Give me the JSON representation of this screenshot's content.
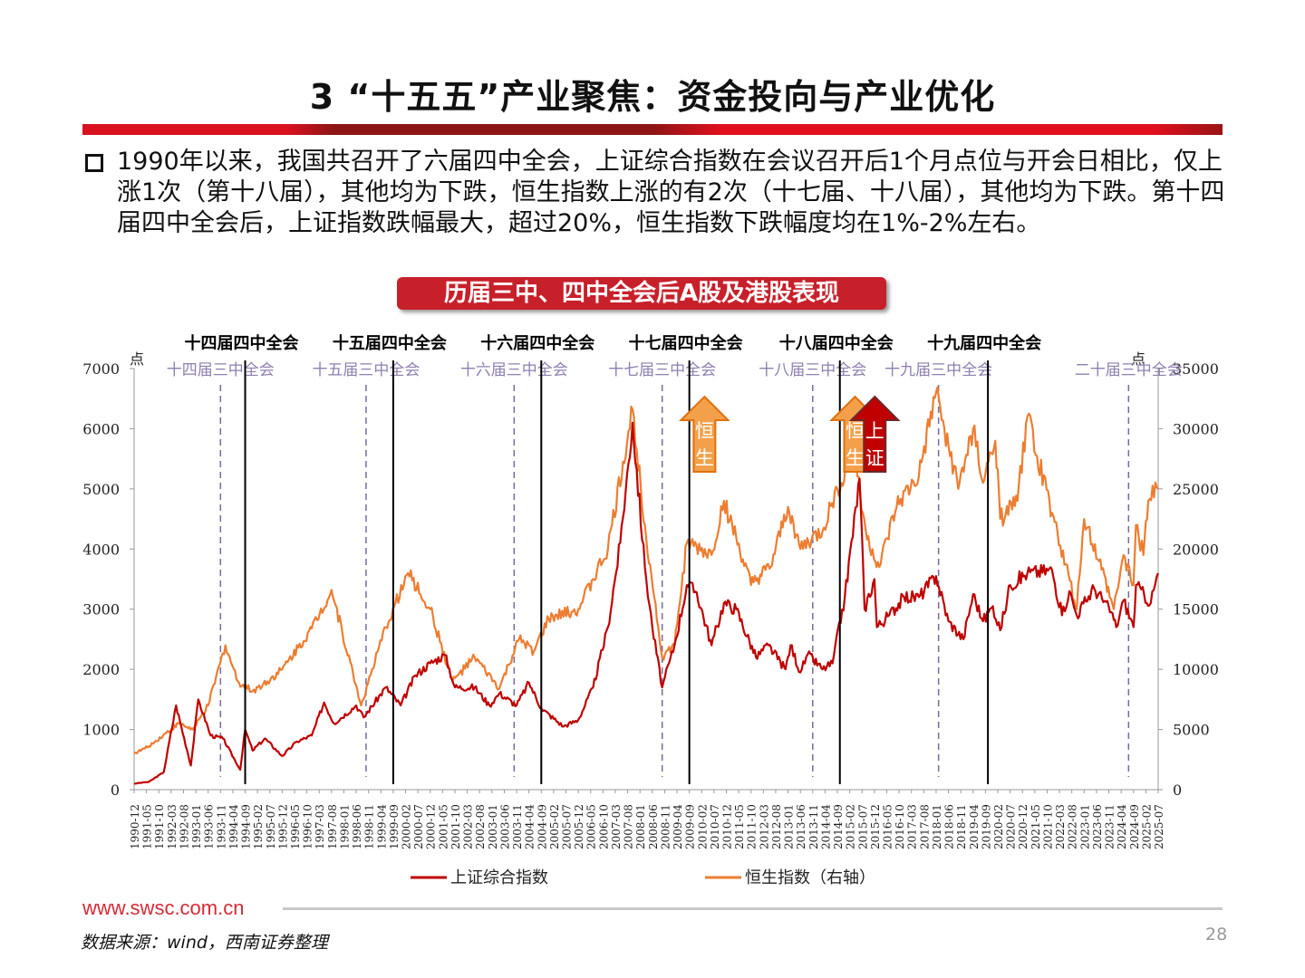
{
  "header": {
    "title": "3 “十五五”产业聚焦：资金投向与产业优化"
  },
  "body": {
    "paragraph": "1990年以来，我国共召开了六届四中全会，上证综合指数在会议召开后1个月点位与开会日相比，仅上涨1次（第十八届），其他均为下跌，恒生指数上涨的有2次（十七届、十八届），其他均为下跌。第十四届四中全会后，上证指数跌幅最大，超过20%，恒生指数下跌幅度均在1%-2%左右。"
  },
  "footer": {
    "url": "www.swsc.com.cn",
    "source": "数据来源：wind，西南证券整理",
    "page": "28"
  },
  "colors": {
    "brand_red": "#d9121f",
    "sse": "#c00000",
    "hsi": "#ed7d31",
    "third_plenum_line": "#7a6a9a",
    "fourth_plenum_line": "#000000"
  },
  "chart_data": {
    "type": "line",
    "title": "历届三中、四中全会后A股及港股表现",
    "ylabel_left": "点",
    "ylabel_right": "点",
    "ylim_left": [
      0,
      7000
    ],
    "ylim_right": [
      0,
      35000
    ],
    "yticks_left": [
      "0",
      "1000",
      "2000",
      "3000",
      "4000",
      "5000",
      "6000",
      "7000"
    ],
    "yticks_right": [
      "0",
      "5000",
      "10000",
      "15000",
      "20000",
      "25000",
      "30000",
      "35000"
    ],
    "x_range": [
      "1990-12",
      "2025-07"
    ],
    "xticks": [
      "1990-12",
      "1991-05",
      "1991-10",
      "1992-03",
      "1992-08",
      "1993-01",
      "1993-06",
      "1993-11",
      "1994-04",
      "1994-09",
      "1995-02",
      "1995-07",
      "1995-12",
      "1996-05",
      "1996-10",
      "1997-03",
      "1997-08",
      "1998-01",
      "1998-06",
      "1998-11",
      "1999-04",
      "1999-09",
      "2000-02",
      "2000-07",
      "2000-12",
      "2001-05",
      "2001-10",
      "2002-03",
      "2002-08",
      "2003-01",
      "2003-06",
      "2003-11",
      "2004-04",
      "2004-09",
      "2005-02",
      "2005-07",
      "2005-12",
      "2006-05",
      "2006-10",
      "2007-03",
      "2007-08",
      "2008-01",
      "2008-06",
      "2008-11",
      "2009-04",
      "2009-09",
      "2010-02",
      "2010-07",
      "2010-12",
      "2011-05",
      "2011-10",
      "2012-03",
      "2012-08",
      "2013-01",
      "2013-06",
      "2013-11",
      "2014-04",
      "2014-09",
      "2015-02",
      "2015-07",
      "2015-12",
      "2016-05",
      "2016-10",
      "2017-03",
      "2017-08",
      "2018-01",
      "2018-06",
      "2018-11",
      "2019-04",
      "2019-09",
      "2020-02",
      "2020-07",
      "2020-12",
      "2021-05",
      "2021-10",
      "2022-03",
      "2022-08",
      "2023-01",
      "2023-06",
      "2023-11",
      "2024-04",
      "2024-09",
      "2025-02",
      "2025-07"
    ],
    "grid": false,
    "legend_position": "bottom",
    "series": [
      {
        "name": "上证综合指数",
        "axis": "left",
        "color": "#c00000",
        "x": [
          "1990-12",
          "1991-06",
          "1991-12",
          "1992-05",
          "1992-11",
          "1993-02",
          "1993-07",
          "1993-12",
          "1994-07",
          "1994-09",
          "1994-12",
          "1995-05",
          "1995-12",
          "1996-06",
          "1996-12",
          "1997-05",
          "1997-09",
          "1998-06",
          "1998-09",
          "1999-06",
          "1999-12",
          "2000-06",
          "2000-12",
          "2001-06",
          "2001-10",
          "2002-06",
          "2002-12",
          "2003-04",
          "2003-11",
          "2004-04",
          "2004-09",
          "2005-06",
          "2005-12",
          "2006-06",
          "2006-12",
          "2007-05",
          "2007-10",
          "2008-03",
          "2008-06",
          "2008-10",
          "2009-03",
          "2009-08",
          "2009-12",
          "2010-06",
          "2010-11",
          "2011-04",
          "2011-12",
          "2012-05",
          "2012-12",
          "2013-02",
          "2013-06",
          "2013-09",
          "2014-03",
          "2014-07",
          "2014-12",
          "2015-06",
          "2015-08",
          "2015-12",
          "2016-01",
          "2016-06",
          "2016-12",
          "2017-06",
          "2018-01",
          "2018-06",
          "2018-12",
          "2019-04",
          "2019-08",
          "2019-12",
          "2020-03",
          "2020-07",
          "2021-02",
          "2021-12",
          "2022-04",
          "2022-07",
          "2022-10",
          "2023-05",
          "2023-12",
          "2024-02",
          "2024-05",
          "2024-09",
          "2024-10",
          "2025-04",
          "2025-07"
        ],
        "y": [
          100,
          130,
          290,
          1400,
          400,
          1500,
          900,
          850,
          330,
          1000,
          650,
          850,
          560,
          800,
          900,
          1450,
          1100,
          1400,
          1200,
          1700,
          1400,
          1900,
          2100,
          2240,
          1700,
          1700,
          1400,
          1600,
          1400,
          1780,
          1350,
          1050,
          1160,
          1700,
          2700,
          4100,
          6100,
          3700,
          2700,
          1700,
          2400,
          3400,
          3280,
          2400,
          3100,
          3000,
          2200,
          2400,
          2000,
          2400,
          1950,
          2250,
          2000,
          2100,
          3200,
          5170,
          3000,
          3500,
          2700,
          2900,
          3200,
          3200,
          3550,
          2800,
          2500,
          3250,
          2800,
          3050,
          2650,
          3400,
          3600,
          3650,
          2900,
          3300,
          2900,
          3350,
          2950,
          2700,
          3150,
          2700,
          3400,
          3100,
          3600
        ]
      },
      {
        "name": "恒生指数（右轴）",
        "axis": "right",
        "color": "#ed7d31",
        "x": [
          "1990-12",
          "1991-06",
          "1992-06",
          "1992-12",
          "1993-06",
          "1994-01",
          "1994-06",
          "1994-12",
          "1995-06",
          "1995-12",
          "1996-12",
          "1997-08",
          "1998-08",
          "1999-06",
          "2000-03",
          "2000-12",
          "2001-09",
          "2002-06",
          "2003-04",
          "2003-12",
          "2004-06",
          "2004-12",
          "2005-12",
          "2006-12",
          "2007-10",
          "2008-03",
          "2008-10",
          "2009-03",
          "2009-08",
          "2010-06",
          "2010-11",
          "2011-10",
          "2012-06",
          "2013-01",
          "2013-06",
          "2014-03",
          "2014-09",
          "2015-04",
          "2015-09",
          "2016-02",
          "2016-09",
          "2017-06",
          "2018-01",
          "2018-10",
          "2019-04",
          "2019-08",
          "2020-01",
          "2020-03",
          "2020-10",
          "2021-02",
          "2021-12",
          "2022-10",
          "2023-01",
          "2023-07",
          "2024-01",
          "2024-05",
          "2024-09",
          "2024-10",
          "2025-01",
          "2025-03",
          "2025-07"
        ],
        "y": [
          3000,
          3600,
          5500,
          5000,
          7000,
          12000,
          9000,
          8200,
          9000,
          10000,
          13400,
          16600,
          7000,
          13500,
          18000,
          15000,
          9000,
          11000,
          8400,
          12500,
          11500,
          14200,
          15000,
          20000,
          31600,
          22000,
          11000,
          12000,
          20500,
          19500,
          24000,
          17000,
          18500,
          23500,
          20000,
          21500,
          25000,
          28000,
          20800,
          18500,
          23500,
          26000,
          33000,
          25000,
          30000,
          25500,
          29000,
          22500,
          24000,
          31000,
          23000,
          15000,
          22500,
          19000,
          15000,
          19500,
          17000,
          22000,
          19500,
          24000,
          25000
        ]
      }
    ],
    "fourth_plenums": [
      {
        "label": "十四届四中全会",
        "date": "1994-09"
      },
      {
        "label": "十五届四中全会",
        "date": "1999-09"
      },
      {
        "label": "十六届四中全会",
        "date": "2004-09"
      },
      {
        "label": "十七届四中全会",
        "date": "2009-09"
      },
      {
        "label": "十八届四中全会",
        "date": "2014-10"
      },
      {
        "label": "十九届四中全会",
        "date": "2019-10"
      }
    ],
    "third_plenums": [
      {
        "label": "十四届三中全会",
        "date": "1993-11"
      },
      {
        "label": "十五届三中全会",
        "date": "1998-10"
      },
      {
        "label": "十六届三中全会",
        "date": "2003-10"
      },
      {
        "label": "十七届三中全会",
        "date": "2008-10"
      },
      {
        "label": "十八届三中全会",
        "date": "2013-11"
      },
      {
        "label": "十九届三中全会",
        "date": "2018-02"
      },
      {
        "label": "二十届三中全会",
        "date": "2024-07"
      }
    ],
    "up_arrows": [
      {
        "label": "恒生",
        "date": "2009-10",
        "color": "#f4a04a"
      },
      {
        "label": "恒生",
        "date": "2014-11",
        "color": "#f4a04a"
      },
      {
        "label": "上证",
        "date": "2015-07",
        "color": "#c00000"
      }
    ]
  }
}
